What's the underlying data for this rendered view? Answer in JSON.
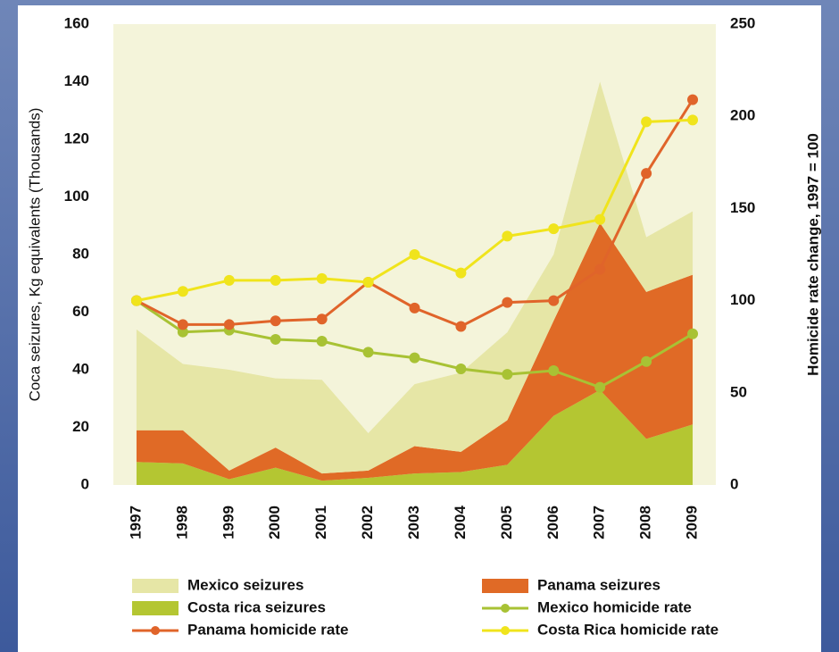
{
  "chart_data": {
    "type": "area-line",
    "categories": [
      "1997",
      "1998",
      "1999",
      "2000",
      "2001",
      "2002",
      "2003",
      "2004",
      "2005",
      "2006",
      "2007",
      "2008",
      "2009"
    ],
    "ylabel": "Coca seizures, Kg equivalents (Thousands)",
    "y2label": "Homicide rate change, 1997 = 100",
    "ylim": [
      0,
      160
    ],
    "yticks": [
      0,
      20,
      40,
      60,
      80,
      100,
      120,
      140,
      160
    ],
    "y2lim": [
      0,
      250
    ],
    "y2ticks": [
      0,
      50,
      100,
      150,
      200,
      250
    ],
    "series": [
      {
        "name": "Mexico seizures",
        "type": "area",
        "color": "#e6e6a6",
        "values": [
          35,
          23,
          35,
          24,
          32.5,
          13,
          21.5,
          27.5,
          30.5,
          23,
          49,
          19,
          22
        ]
      },
      {
        "name": "Panama seizures",
        "type": "area",
        "color": "#e06a26",
        "values": [
          11,
          11.5,
          3,
          7,
          2.5,
          2.5,
          9.5,
          7,
          15.5,
          33,
          58,
          51,
          52
        ]
      },
      {
        "name": "Costa rica seizures",
        "type": "area",
        "color": "#b4c632",
        "values": [
          8,
          7.5,
          2,
          6,
          1.5,
          2.5,
          4,
          4.5,
          7,
          24,
          33,
          16,
          21
        ]
      },
      {
        "name": "Mexico homicide rate",
        "type": "line",
        "axis": "y2",
        "color": "#a8c234",
        "values": [
          100,
          83,
          84,
          79,
          78,
          72,
          69,
          63,
          60,
          62,
          53,
          67,
          82
        ]
      },
      {
        "name": "Panama homicide rate",
        "type": "line",
        "axis": "y2",
        "color": "#e0642a",
        "values": [
          100,
          87,
          87,
          89,
          90,
          110,
          96,
          86,
          99,
          100,
          117,
          169,
          209
        ]
      },
      {
        "name": "Costa Rica homicide rate",
        "type": "line",
        "axis": "y2",
        "color": "#f0e41c",
        "values": [
          100,
          105,
          111,
          111,
          112,
          110,
          125,
          115,
          135,
          139,
          144,
          197,
          198
        ]
      }
    ]
  }
}
